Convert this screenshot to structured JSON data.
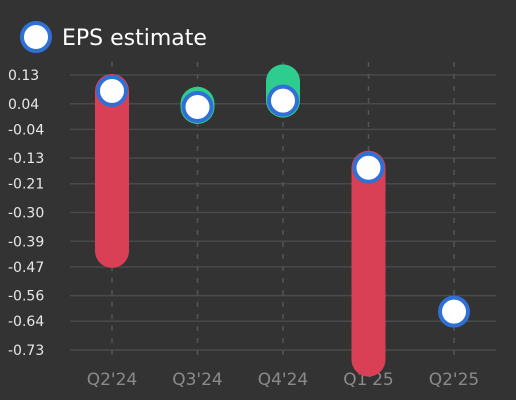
{
  "chart_data": {
    "type": "bar",
    "categories": [
      "Q2'24",
      "Q3'24",
      "Q4'24",
      "Q1'25",
      "Q2'25"
    ],
    "series": [
      {
        "name": "EPS estimate",
        "values": [
          0.08,
          0.03,
          0.05,
          -0.16,
          -0.61
        ]
      }
    ],
    "reported": [
      -0.42,
      0.04,
      0.11,
      -0.76,
      null
    ],
    "y_ticks": [
      "0.13",
      "0.04",
      "-0.04",
      "-0.13",
      "-0.21",
      "-0.30",
      "-0.39",
      "-0.47",
      "-0.56",
      "-0.64",
      "-0.73"
    ],
    "ylim": [
      -0.77,
      0.17
    ],
    "legend_position": "top-left",
    "grid": true,
    "colors": {
      "background": "#333333",
      "beat": "#2ecc8f",
      "miss": "#d94055",
      "marker_fill": "#ffffff",
      "marker_stroke": "#2f6fd6",
      "grid": "#4a4a4a"
    }
  }
}
